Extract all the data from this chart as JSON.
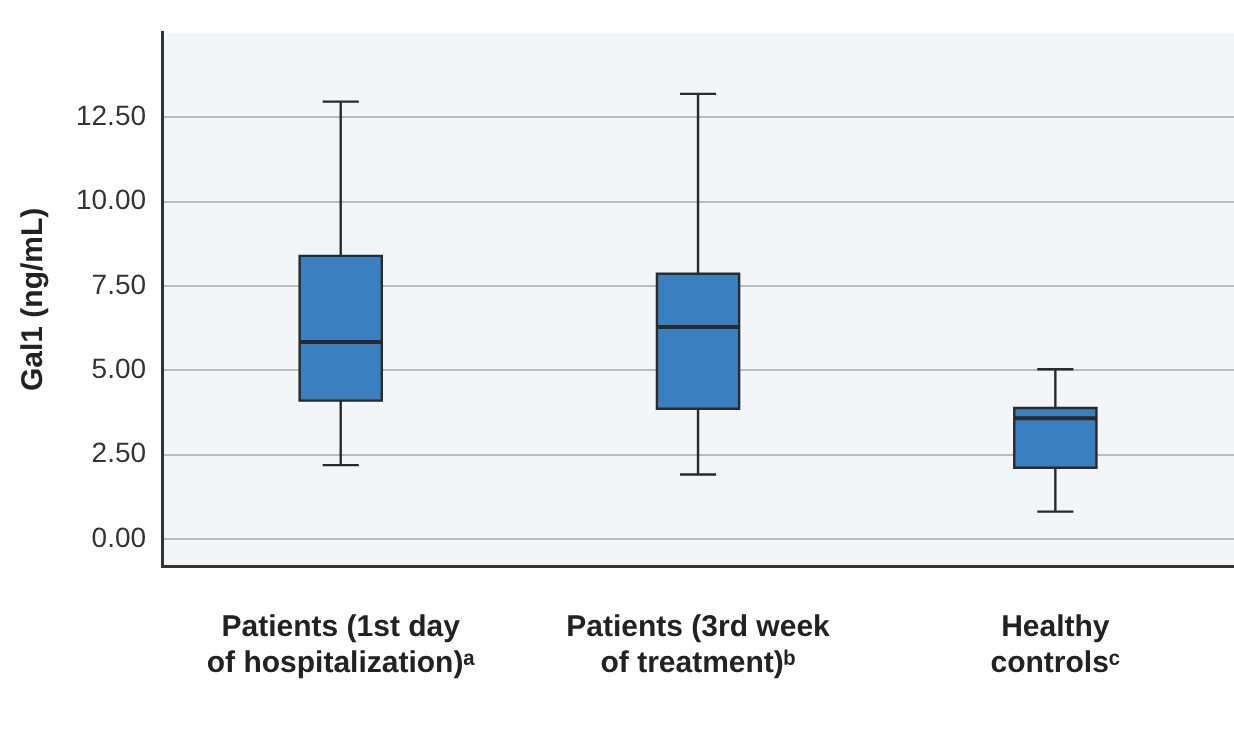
{
  "chart_data": {
    "type": "box",
    "ylabel": "Gal1 (ng/mL)",
    "categories": [
      "Patients (1st day of hospitalization)ᵃ",
      "Patients (3rd week of treatment)ᵇ",
      "Healthy controlsᶜ"
    ],
    "boxes": [
      {
        "low": 2.19,
        "q1": 4.1,
        "median": 5.84,
        "q3": 8.39,
        "high": 12.96
      },
      {
        "low": 1.91,
        "q1": 3.86,
        "median": 6.28,
        "q3": 7.86,
        "high": 13.19
      },
      {
        "low": 0.81,
        "q1": 2.11,
        "median": 3.58,
        "q3": 3.88,
        "high": 5.03
      }
    ],
    "color": "#3a80c0",
    "ylim": [
      -0.8,
      15
    ],
    "yticks": [
      {
        "value": 0,
        "label": "0.00"
      },
      {
        "value": 2.5,
        "label": "2.50"
      },
      {
        "value": 5,
        "label": "5.00"
      },
      {
        "value": 7.5,
        "label": "7.50"
      },
      {
        "value": 10,
        "label": "10.00"
      },
      {
        "value": 12.5,
        "label": "12.50"
      }
    ],
    "grid": "y",
    "legend": false
  }
}
